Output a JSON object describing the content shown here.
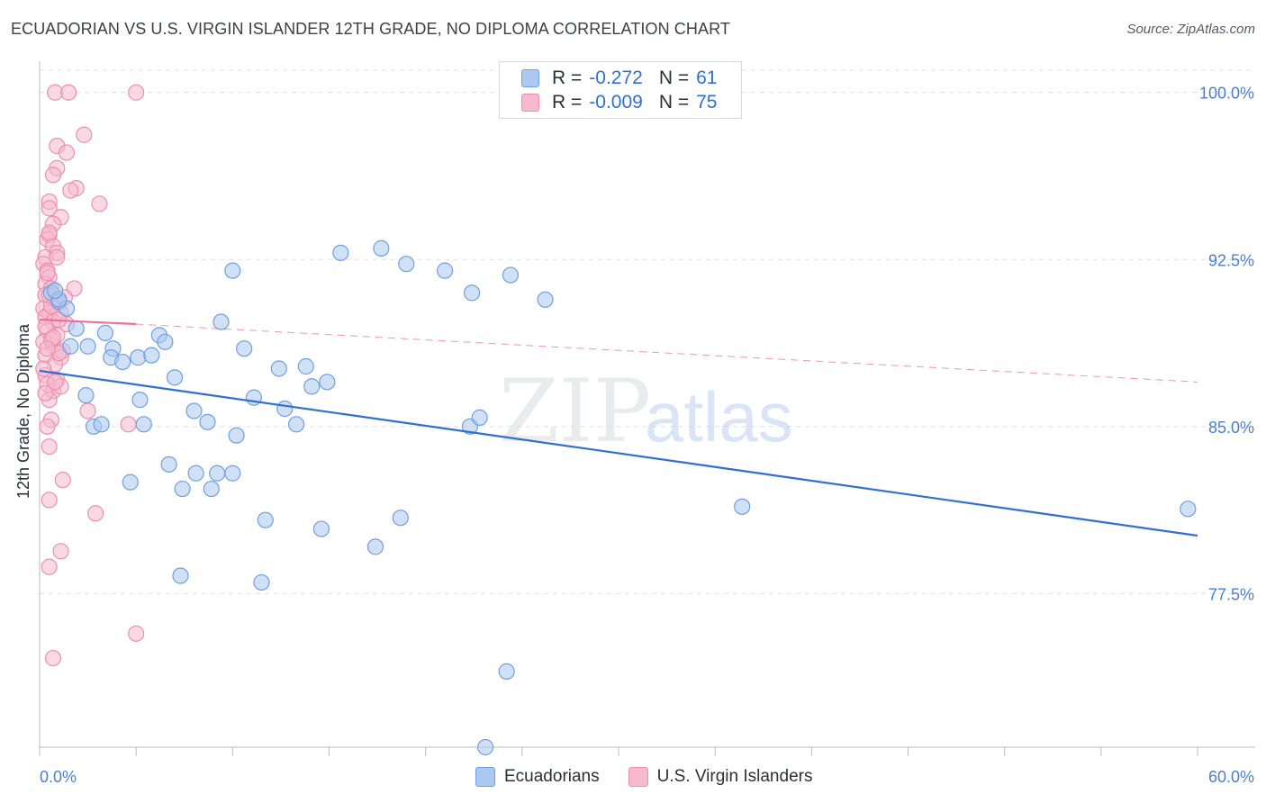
{
  "header": {
    "title": "ECUADORIAN VS U.S. VIRGIN ISLANDER 12TH GRADE, NO DIPLOMA CORRELATION CHART",
    "source": "Source: ZipAtlas.com"
  },
  "legend": {
    "rows": [
      {
        "r_label": "R =",
        "r_value": "-0.272",
        "n_label": "N =",
        "n_value": "61"
      },
      {
        "r_label": "R =",
        "r_value": "-0.009",
        "n_label": "N =",
        "n_value": "75"
      }
    ]
  },
  "watermark": {
    "zip": "ZIP",
    "atlas": "atlas"
  },
  "colors": {
    "blue": "#2f6fcf",
    "blue_fill": "#aac8f0",
    "blue_stroke": "#6f9fe0",
    "pink": "#e8709a",
    "pink_fill": "#f6b9cd",
    "pink_stroke": "#ec8fb0",
    "grid": "#dcdfe4",
    "tick_label": "#4a7fd0"
  },
  "chart_data": {
    "type": "scatter",
    "title": "ECUADORIAN VS U.S. VIRGIN ISLANDER 12TH GRADE, NO DIPLOMA CORRELATION CHART",
    "ylabel": "12th Grade, No Diploma",
    "xlabel": "",
    "xlim": [
      0,
      60
    ],
    "ylim": [
      70.6,
      101.0
    ],
    "x_tick_labels": [
      "0.0%",
      "60.0%"
    ],
    "y_ticks": [
      77.5,
      85.0,
      92.5,
      100.0
    ],
    "y_tick_labels": [
      "77.5%",
      "85.0%",
      "92.5%",
      "100.0%"
    ],
    "grid": true,
    "legend_placement": "bottom",
    "series": [
      {
        "name": "Ecuadorians",
        "color": "#2f6fcf",
        "trend": {
          "x": [
            0,
            60
          ],
          "y": [
            87.5,
            80.1
          ]
        },
        "points": [
          [
            0.6,
            91.0
          ],
          [
            1.0,
            90.6
          ],
          [
            1.4,
            90.3
          ],
          [
            1.9,
            89.4
          ],
          [
            1.6,
            88.6
          ],
          [
            2.5,
            88.6
          ],
          [
            3.4,
            89.2
          ],
          [
            3.8,
            88.5
          ],
          [
            3.7,
            88.1
          ],
          [
            4.3,
            87.9
          ],
          [
            5.1,
            88.1
          ],
          [
            5.8,
            88.2
          ],
          [
            6.2,
            89.1
          ],
          [
            6.5,
            88.8
          ],
          [
            7.0,
            87.2
          ],
          [
            10.0,
            92.0
          ],
          [
            9.4,
            89.7
          ],
          [
            10.6,
            88.5
          ],
          [
            2.4,
            86.4
          ],
          [
            2.8,
            85.0
          ],
          [
            3.2,
            85.1
          ],
          [
            5.2,
            86.2
          ],
          [
            5.4,
            85.1
          ],
          [
            8.0,
            85.7
          ],
          [
            8.7,
            85.2
          ],
          [
            10.2,
            84.6
          ],
          [
            11.1,
            86.3
          ],
          [
            12.4,
            87.6
          ],
          [
            12.7,
            85.8
          ],
          [
            13.3,
            85.1
          ],
          [
            13.8,
            87.7
          ],
          [
            14.1,
            86.8
          ],
          [
            14.9,
            87.0
          ],
          [
            15.6,
            92.8
          ],
          [
            17.7,
            93.0
          ],
          [
            19.0,
            92.3
          ],
          [
            21.0,
            92.0
          ],
          [
            22.4,
            91.0
          ],
          [
            24.4,
            91.8
          ],
          [
            26.2,
            90.7
          ],
          [
            22.3,
            85.0
          ],
          [
            22.8,
            85.4
          ],
          [
            6.7,
            83.3
          ],
          [
            4.7,
            82.5
          ],
          [
            7.4,
            82.2
          ],
          [
            8.1,
            82.9
          ],
          [
            8.9,
            82.2
          ],
          [
            9.2,
            82.9
          ],
          [
            10.0,
            82.9
          ],
          [
            11.7,
            80.8
          ],
          [
            14.6,
            80.4
          ],
          [
            18.7,
            80.9
          ],
          [
            17.4,
            79.6
          ],
          [
            7.3,
            78.3
          ],
          [
            11.5,
            78.0
          ],
          [
            36.4,
            81.4
          ],
          [
            59.5,
            81.3
          ],
          [
            24.2,
            74.0
          ],
          [
            23.1,
            70.6
          ],
          [
            1.0,
            90.7
          ],
          [
            0.8,
            91.1
          ]
        ]
      },
      {
        "name": "U.S. Virgin Islanders",
        "color": "#e8709a",
        "trend": {
          "x": [
            0,
            5
          ],
          "y": [
            89.8,
            89.6
          ]
        },
        "trend_dashed": {
          "x": [
            5,
            60
          ],
          "y": [
            89.6,
            87.0
          ]
        },
        "points": [
          [
            0.8,
            100.0
          ],
          [
            1.5,
            100.0
          ],
          [
            5.0,
            100.0
          ],
          [
            0.9,
            97.6
          ],
          [
            1.4,
            97.3
          ],
          [
            2.3,
            98.1
          ],
          [
            0.9,
            96.6
          ],
          [
            0.7,
            96.3
          ],
          [
            1.9,
            95.7
          ],
          [
            1.6,
            95.6
          ],
          [
            0.5,
            95.1
          ],
          [
            3.1,
            95.0
          ],
          [
            0.5,
            94.8
          ],
          [
            1.1,
            94.4
          ],
          [
            0.7,
            94.1
          ],
          [
            0.5,
            93.6
          ],
          [
            0.4,
            93.4
          ],
          [
            0.7,
            93.1
          ],
          [
            0.9,
            92.8
          ],
          [
            0.3,
            92.6
          ],
          [
            0.2,
            92.3
          ],
          [
            0.4,
            92.0
          ],
          [
            0.5,
            91.7
          ],
          [
            0.3,
            91.4
          ],
          [
            0.6,
            91.2
          ],
          [
            1.8,
            91.2
          ],
          [
            0.3,
            90.9
          ],
          [
            0.8,
            90.6
          ],
          [
            0.2,
            90.3
          ],
          [
            0.5,
            90.1
          ],
          [
            1.1,
            90.1
          ],
          [
            0.3,
            89.9
          ],
          [
            0.7,
            89.7
          ],
          [
            1.4,
            89.6
          ],
          [
            0.4,
            89.3
          ],
          [
            0.9,
            89.1
          ],
          [
            0.2,
            88.8
          ],
          [
            0.7,
            88.6
          ],
          [
            1.2,
            88.4
          ],
          [
            0.3,
            88.2
          ],
          [
            1.1,
            88.1
          ],
          [
            0.8,
            87.8
          ],
          [
            0.3,
            87.3
          ],
          [
            0.9,
            87.1
          ],
          [
            0.4,
            86.9
          ],
          [
            0.7,
            86.6
          ],
          [
            0.5,
            86.2
          ],
          [
            1.1,
            86.8
          ],
          [
            2.5,
            85.7
          ],
          [
            0.6,
            85.3
          ],
          [
            0.4,
            85.0
          ],
          [
            4.6,
            85.1
          ],
          [
            0.5,
            84.1
          ],
          [
            1.2,
            82.6
          ],
          [
            0.5,
            81.7
          ],
          [
            2.9,
            81.1
          ],
          [
            1.1,
            79.4
          ],
          [
            0.5,
            78.7
          ],
          [
            5.0,
            75.7
          ],
          [
            0.7,
            74.6
          ],
          [
            0.3,
            89.5
          ],
          [
            0.6,
            88.9
          ],
          [
            0.4,
            91.9
          ],
          [
            1.0,
            88.3
          ],
          [
            0.2,
            87.6
          ],
          [
            0.6,
            90.4
          ],
          [
            0.9,
            92.6
          ],
          [
            0.3,
            86.5
          ],
          [
            1.3,
            90.8
          ],
          [
            0.5,
            93.7
          ],
          [
            0.7,
            89.0
          ],
          [
            0.4,
            88.5
          ],
          [
            0.8,
            87.0
          ],
          [
            0.5,
            90.9
          ],
          [
            1.0,
            89.8
          ]
        ]
      }
    ]
  }
}
